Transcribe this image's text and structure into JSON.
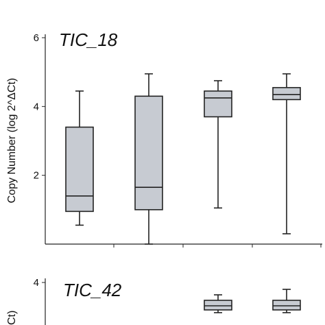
{
  "chart_data": [
    {
      "type": "box",
      "title": "TIC_18",
      "ylabel": "Copy Number (log 2^ΔCt)",
      "ylim": [
        0,
        6
      ],
      "yticks": [
        2,
        4,
        6
      ],
      "boxes": [
        {
          "whisker_low": 0.55,
          "q1": 0.95,
          "median": 1.4,
          "q3": 3.4,
          "whisker_high": 4.45
        },
        {
          "whisker_low": 0.0,
          "q1": 1.0,
          "median": 1.65,
          "q3": 4.3,
          "whisker_high": 4.95
        },
        {
          "whisker_low": 1.05,
          "q1": 3.7,
          "median": 4.25,
          "q3": 4.45,
          "whisker_high": 4.75
        },
        {
          "whisker_low": 0.3,
          "q1": 4.2,
          "median": 4.35,
          "q3": 4.55,
          "whisker_high": 4.95
        }
      ]
    },
    {
      "type": "box",
      "title": "TIC_42",
      "ylabel": "Ct)",
      "ylim": [
        0,
        4
      ],
      "yticks": [
        4
      ],
      "boxes": [
        {
          "whisker_low": 2.9,
          "q1": 3.0,
          "median": 3.15,
          "q3": 3.35,
          "whisker_high": 3.55
        },
        {
          "whisker_low": 2.9,
          "q1": 3.0,
          "median": 3.15,
          "q3": 3.35,
          "whisker_high": 3.75
        }
      ],
      "box_positions": [
        2,
        3
      ]
    }
  ]
}
